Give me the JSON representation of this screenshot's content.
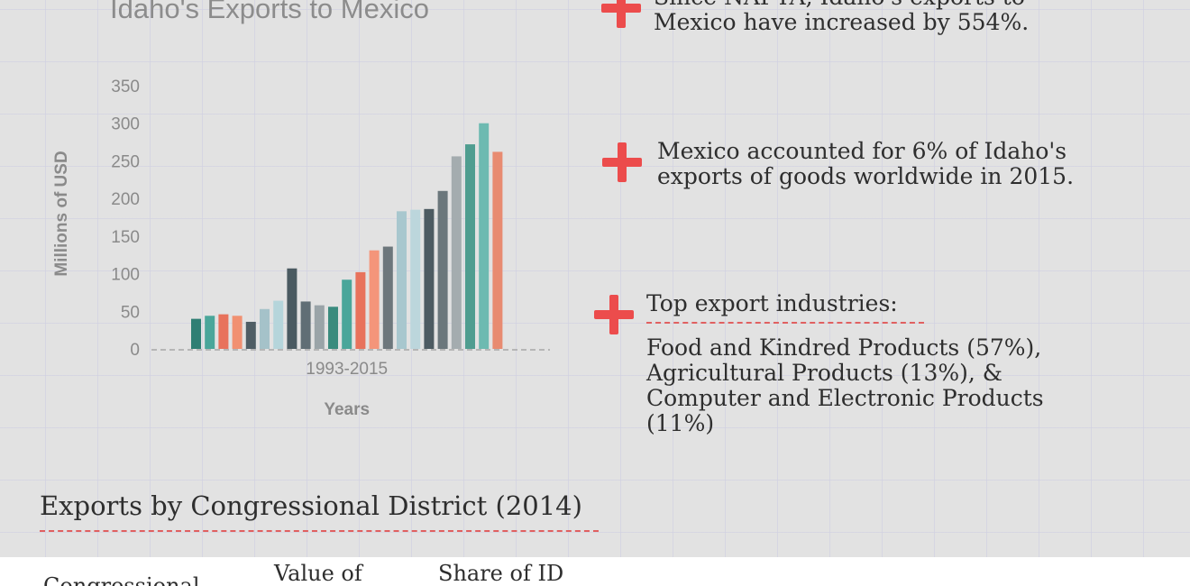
{
  "chart_data": {
    "type": "bar",
    "title": "Idaho's Exports to Mexico",
    "xlabel": "Years",
    "ylabel": "Millions of USD",
    "x_tick_label": "1993-2015",
    "ylim": [
      0,
      350
    ],
    "yticks": [
      0,
      50,
      100,
      150,
      200,
      250,
      300,
      350
    ],
    "grid": false,
    "values": [
      40,
      44,
      46,
      44,
      36,
      53,
      64,
      107,
      63,
      58,
      56,
      92,
      102,
      131,
      136,
      183,
      185,
      186,
      210,
      256,
      272,
      300,
      262
    ],
    "colors": [
      "#2f7f74",
      "#4aa69a",
      "#e8725c",
      "#f19071",
      "#4f5d64",
      "#a5c2c9",
      "#b5d5db",
      "#4a5a61",
      "#606e75",
      "#9aa4a8",
      "#3a8b7e",
      "#4aa69a",
      "#e8725c",
      "#f4957a",
      "#6d777c",
      "#a8c7ce",
      "#bcd6dc",
      "#4d5b62",
      "#6b777c",
      "#a4acaf",
      "#4f9d90",
      "#6dbab1",
      "#e88b71"
    ]
  },
  "facts": [
    {
      "line1": "Since NAFTA, Idaho's exports to",
      "line2": "Mexico have increased by 554%."
    },
    {
      "line1": "Mexico accounted for 6% of Idaho's",
      "line2": "exports of goods worldwide in 2015."
    }
  ],
  "industries": {
    "heading": "Top export industries:",
    "lines": [
      "Food and Kindred Products (57%),",
      "Agricultural Products (13%), &",
      "Computer and Electronic Products",
      "(11%)"
    ]
  },
  "districts": {
    "title": "Exports by Congressional District (2014)",
    "headers": [
      "Congressional",
      "Value of",
      "Share of ID"
    ]
  },
  "colors": {
    "accent": "#ec4c4c",
    "background": "#e2e2e2"
  }
}
